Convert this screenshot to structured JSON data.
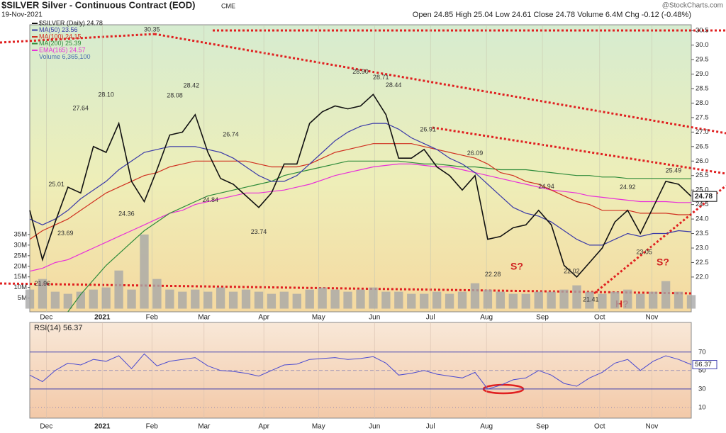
{
  "chart_data": {
    "type": "line",
    "title": "$SILVER Silver - Continuous Contract (EOD)",
    "exchange": "CME",
    "date": "19-Nov-2021",
    "quote": "Open 24.85 High 25.04 Low 24.61 Close 24.78 Volume 6.4M Chg -0.12 (-0.48%)",
    "watermark": "@StockCharts.com",
    "x": [
      0,
      1,
      2,
      3,
      4,
      5,
      6,
      7,
      8,
      9,
      10,
      11,
      12,
      13,
      14,
      15,
      16,
      17,
      18,
      19,
      20,
      21,
      22,
      23,
      24,
      25,
      26,
      27,
      28,
      29,
      30,
      31,
      32,
      33,
      34,
      35,
      36,
      37,
      38,
      39,
      40,
      41,
      42,
      43,
      44,
      45,
      46,
      47,
      48,
      49,
      50,
      51,
      52
    ],
    "xlim": [
      0,
      52
    ],
    "xticks": [
      {
        "value": 1.3,
        "label": "Dec"
      },
      {
        "value": 5.7,
        "label": "2021"
      },
      {
        "value": 9.6,
        "label": "Feb"
      },
      {
        "value": 13.7,
        "label": "Mar"
      },
      {
        "value": 18.4,
        "label": "Apr"
      },
      {
        "value": 22.7,
        "label": "May"
      },
      {
        "value": 27.1,
        "label": "Jun"
      },
      {
        "value": 31.5,
        "label": "Jul"
      },
      {
        "value": 35.9,
        "label": "Aug"
      },
      {
        "value": 40.3,
        "label": "Sep"
      },
      {
        "value": 44.8,
        "label": "Oct"
      },
      {
        "value": 48.9,
        "label": "Nov"
      }
    ],
    "ylim": [
      20.8,
      30.7
    ],
    "yticks": [
      {
        "value": 22,
        "label": "22.0"
      },
      {
        "value": 22.5,
        "label": "22.5"
      },
      {
        "value": 23,
        "label": "23.0"
      },
      {
        "value": 23.5,
        "label": "23.5"
      },
      {
        "value": 24,
        "label": "24.0"
      },
      {
        "value": 24.5,
        "label": "24.5"
      },
      {
        "value": 25,
        "label": "25.0"
      },
      {
        "value": 25.5,
        "label": "25.5"
      },
      {
        "value": 26,
        "label": "26.0"
      },
      {
        "value": 26.5,
        "label": "26.5"
      },
      {
        "value": 27,
        "label": "27.0"
      },
      {
        "value": 27.5,
        "label": "27.5"
      },
      {
        "value": 28,
        "label": "28.0"
      },
      {
        "value": 28.5,
        "label": "28.5"
      },
      {
        "value": 29,
        "label": "29.0"
      },
      {
        "value": 29.5,
        "label": "29.5"
      },
      {
        "value": 30,
        "label": "30.0"
      },
      {
        "value": 30.5,
        "label": "30.5"
      }
    ],
    "series": [
      {
        "name": "$SILVER (Daily) 24.78",
        "color": "#111111",
        "values": [
          24.3,
          22.6,
          23.9,
          25.1,
          24.9,
          26.5,
          26.3,
          27.3,
          25.3,
          24.6,
          25.7,
          26.9,
          27.0,
          27.6,
          26.3,
          25.4,
          25.2,
          24.8,
          24.4,
          24.9,
          25.9,
          25.9,
          27.3,
          27.7,
          27.9,
          27.8,
          27.9,
          28.3,
          27.6,
          26.1,
          26.1,
          26.4,
          25.8,
          25.5,
          25.0,
          25.5,
          23.3,
          23.4,
          23.7,
          23.8,
          24.3,
          23.8,
          22.4,
          22.0,
          22.5,
          23.0,
          23.9,
          24.3,
          23.5,
          24.4,
          25.3,
          25.2,
          24.78
        ]
      },
      {
        "name": "MA(50) 23.56",
        "color": "#3a3aa8",
        "values": [
          24.0,
          23.8,
          24.0,
          24.3,
          24.7,
          25.0,
          25.3,
          25.7,
          26.0,
          26.3,
          26.4,
          26.5,
          26.5,
          26.5,
          26.4,
          26.3,
          26.1,
          25.8,
          25.5,
          25.3,
          25.3,
          25.5,
          25.9,
          26.3,
          26.7,
          27.0,
          27.2,
          27.3,
          27.3,
          27.1,
          26.8,
          26.6,
          26.4,
          26.1,
          25.9,
          25.6,
          25.2,
          24.8,
          24.4,
          24.2,
          24.1,
          23.9,
          23.6,
          23.3,
          23.1,
          23.1,
          23.3,
          23.5,
          23.4,
          23.5,
          23.5,
          23.6,
          23.56
        ]
      },
      {
        "name": "MA(100) 24.15",
        "color": "#d03020",
        "values": [
          23.3,
          23.6,
          23.8,
          24.0,
          24.3,
          24.6,
          24.9,
          25.1,
          25.3,
          25.5,
          25.6,
          25.8,
          25.9,
          26.0,
          26.0,
          26.0,
          26.0,
          26.0,
          25.9,
          25.8,
          25.8,
          25.8,
          25.9,
          26.1,
          26.3,
          26.4,
          26.5,
          26.6,
          26.6,
          26.6,
          26.6,
          26.5,
          26.4,
          26.3,
          26.2,
          26.1,
          25.9,
          25.6,
          25.5,
          25.3,
          25.2,
          25.0,
          24.8,
          24.6,
          24.5,
          24.3,
          24.3,
          24.3,
          24.2,
          24.2,
          24.2,
          24.15,
          24.15
        ]
      },
      {
        "name": "MA(200) 25.39",
        "color": "#2e8b3a",
        "values": [
          null,
          null,
          null,
          20.8,
          21.4,
          21.9,
          22.4,
          22.8,
          23.2,
          23.6,
          23.9,
          24.2,
          24.4,
          24.6,
          24.8,
          24.9,
          25.0,
          25.1,
          25.2,
          25.3,
          25.5,
          25.6,
          25.7,
          25.8,
          25.9,
          26.0,
          26.0,
          26.0,
          26.0,
          26.0,
          25.95,
          25.9,
          25.9,
          25.85,
          25.8,
          25.8,
          25.75,
          25.7,
          25.7,
          25.7,
          25.65,
          25.6,
          25.55,
          25.5,
          25.5,
          25.45,
          25.45,
          25.4,
          25.4,
          25.4,
          25.4,
          25.39,
          25.39
        ]
      },
      {
        "name": "EMA(165) 24.57",
        "color": "#e830d8",
        "values": [
          22.2,
          22.3,
          22.5,
          22.6,
          22.8,
          23.0,
          23.2,
          23.4,
          23.6,
          23.8,
          24.0,
          24.2,
          24.3,
          24.5,
          24.6,
          24.7,
          24.8,
          24.9,
          24.9,
          24.95,
          25.0,
          25.1,
          25.2,
          25.35,
          25.5,
          25.6,
          25.7,
          25.8,
          25.85,
          25.9,
          25.9,
          25.85,
          25.8,
          25.8,
          25.7,
          25.6,
          25.5,
          25.4,
          25.3,
          25.2,
          25.1,
          25.0,
          24.95,
          24.9,
          24.8,
          24.75,
          24.7,
          24.65,
          24.6,
          24.6,
          24.6,
          24.57,
          24.57
        ]
      }
    ],
    "volume": {
      "name": "Volume 6,365,100",
      "color": "#a8a8a8",
      "values": [
        9,
        14,
        8,
        7,
        8,
        9,
        10,
        18,
        9,
        35,
        14,
        9,
        8,
        9,
        8,
        10,
        8,
        9,
        8,
        7,
        8,
        7,
        9,
        10,
        9,
        8,
        9,
        10,
        8,
        8,
        7,
        7,
        8,
        7,
        8,
        12,
        9,
        8,
        7,
        7,
        8,
        8,
        9,
        11,
        8,
        7,
        8,
        9,
        7,
        8,
        13,
        8,
        6.4
      ],
      "ylim": [
        -1.5,
        134
      ],
      "yticks": [
        {
          "value": 5,
          "label": "5M"
        },
        {
          "value": 10,
          "label": "10M"
        },
        {
          "value": 15,
          "label": "15M"
        },
        {
          "value": 20,
          "label": "20M"
        },
        {
          "value": 25,
          "label": "25M"
        },
        {
          "value": 30,
          "label": "30M"
        },
        {
          "value": 35,
          "label": "35M"
        }
      ]
    },
    "rsi": {
      "name": "RSI(14) 56.37",
      "color": "#4a4ad0",
      "values": [
        45,
        38,
        50,
        58,
        56,
        62,
        60,
        66,
        52,
        68,
        55,
        60,
        62,
        64,
        55,
        50,
        49,
        47,
        44,
        50,
        56,
        57,
        62,
        63,
        64,
        62,
        63,
        65,
        58,
        45,
        47,
        50,
        46,
        44,
        42,
        48,
        30,
        34,
        40,
        42,
        50,
        45,
        36,
        33,
        42,
        48,
        58,
        62,
        50,
        60,
        66,
        62,
        56.37
      ],
      "ylim": [
        -1.5,
        102
      ],
      "yticks": [
        10,
        30,
        50,
        70
      ]
    },
    "annotations": [
      {
        "x": 9.6,
        "y": 30.35,
        "label": "30.35"
      },
      {
        "x": 26.0,
        "y": 28.9,
        "label": "28.90"
      },
      {
        "x": 27.6,
        "y": 28.71,
        "label": "28.71"
      },
      {
        "x": 28.6,
        "y": 28.44,
        "label": "28.44"
      },
      {
        "x": 31.3,
        "y": 26.91,
        "label": "26.91"
      },
      {
        "x": 35.0,
        "y": 26.09,
        "label": "26.09"
      },
      {
        "x": 50.6,
        "y": 25.49,
        "label": "25.49"
      },
      {
        "x": 47.0,
        "y": 24.92,
        "label": "24.92"
      },
      {
        "x": 40.6,
        "y": 24.94,
        "label": "24.94"
      },
      {
        "x": 44.1,
        "y": 21.41,
        "label": "21.41"
      },
      {
        "x": 42.6,
        "y": 22.02,
        "label": "22.02"
      },
      {
        "x": 36.4,
        "y": 22.28,
        "label": "22.28"
      },
      {
        "x": 48.3,
        "y": 23.05,
        "label": "23.05"
      },
      {
        "x": 18.0,
        "y": 23.74,
        "label": "23.74"
      },
      {
        "x": 1.0,
        "y": 21.96,
        "label": "21.96"
      },
      {
        "x": 4.0,
        "y": 27.64,
        "label": "27.64"
      },
      {
        "x": 6.0,
        "y": 28.1,
        "label": "28.10"
      },
      {
        "x": 12.7,
        "y": 28.42,
        "label": "28.42"
      },
      {
        "x": 11.4,
        "y": 28.08,
        "label": "28.08"
      },
      {
        "x": 2.1,
        "y": 25.01,
        "label": "25.01"
      },
      {
        "x": 2.8,
        "y": 23.69,
        "label": "23.69"
      },
      {
        "x": 15.8,
        "y": 26.74,
        "label": "26.74"
      },
      {
        "x": 14.2,
        "y": 24.84,
        "label": "24.84"
      },
      {
        "x": 7.6,
        "y": 24.36,
        "label": "24.36"
      }
    ],
    "pattern_labels": [
      "S?",
      "H?",
      "S?"
    ]
  }
}
